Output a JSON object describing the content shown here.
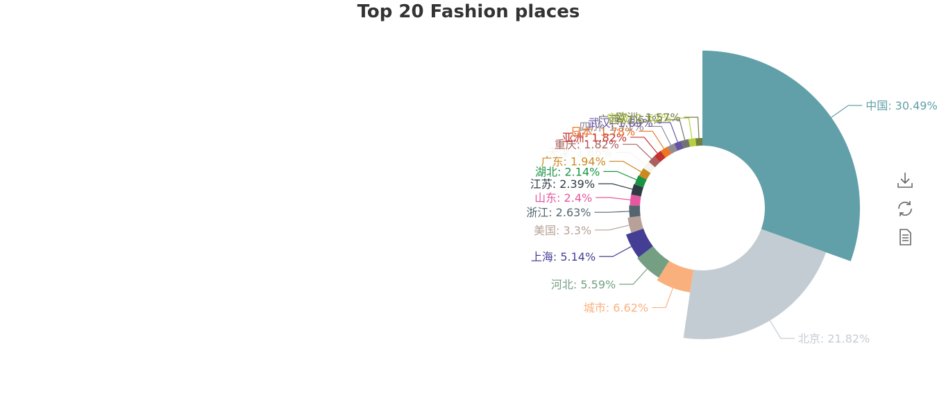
{
  "chart_data": {
    "type": "pie",
    "variant": "nightingale-rose",
    "title": "Top 20 Fashion places",
    "legend": "none",
    "slices": [
      {
        "label": "中国",
        "value": 30.49,
        "color": "#61a0a8"
      },
      {
        "label": "北京",
        "value": 21.82,
        "color": "#c4ccd3"
      },
      {
        "label": "城市",
        "value": 6.62,
        "color": "#fab07c"
      },
      {
        "label": "河北",
        "value": 5.59,
        "color": "#749f83"
      },
      {
        "label": "上海",
        "value": 5.14,
        "color": "#443f95"
      },
      {
        "label": "美国",
        "value": 3.3,
        "color": "#b7a198"
      },
      {
        "label": "浙江",
        "value": 2.63,
        "color": "#546570"
      },
      {
        "label": "山东",
        "value": 2.4,
        "color": "#e5579e"
      },
      {
        "label": "江苏",
        "value": 2.39,
        "color": "#2e3b43"
      },
      {
        "label": "湖北",
        "value": 2.14,
        "color": "#1a9443"
      },
      {
        "label": "广东",
        "value": 1.94,
        "color": "#cb8a21"
      },
      {
        "label": "天津",
        "value": 1.86,
        "color": "#f4f5ee"
      },
      {
        "label": "重庆",
        "value": 1.82,
        "color": "#a9615f"
      },
      {
        "label": "亚洲",
        "value": 1.82,
        "color": "#c4302e"
      },
      {
        "label": "日本",
        "value": 1.78,
        "color": "#ee7522"
      },
      {
        "label": "四川",
        "value": 1.71,
        "color": "#938b96"
      },
      {
        "label": "武汉",
        "value": 1.69,
        "color": "#6554a3"
      },
      {
        "label": "广西",
        "value": 1.67,
        "color": "#727272"
      },
      {
        "label": "安徽",
        "value": 1.62,
        "color": "#b5cf3d"
      },
      {
        "label": "欧洲",
        "value": 1.57,
        "color": "#727d42"
      }
    ]
  },
  "toolbox": {
    "save_icon": "download-icon",
    "restore_icon": "refresh-icon",
    "dataview_icon": "document-icon"
  }
}
